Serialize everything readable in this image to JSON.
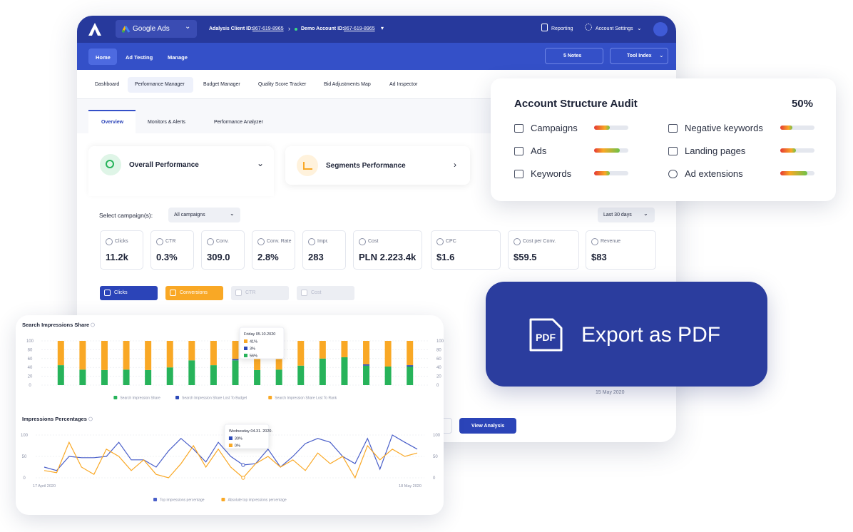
{
  "header": {
    "brand": "Google Ads",
    "client_label": "Adalysis Client ID:",
    "client_id": "867-619-8965",
    "account_label": "Demo Account ID:",
    "account_id": "867-619-8965",
    "reporting": "Reporting",
    "settings": "Account Settings"
  },
  "nav": {
    "items": [
      "Home",
      "Ad Testing",
      "Manage"
    ],
    "notes": "5 Notes",
    "tool_index": "Tool Index"
  },
  "subnav": [
    "Dashboard",
    "Performance Manager",
    "Budget Manager",
    "Quality Score Tracker",
    "Bid Adjustments Map",
    "Ad Inspector"
  ],
  "tabs": [
    "Overview",
    "Monitors & Alerts",
    "Performance Analyzer"
  ],
  "cards": [
    "Overall Performance",
    "Segments Performance"
  ],
  "filters": {
    "label": "Select campaign(s):",
    "campaigns": "All campaigns",
    "period": "Last 30 days"
  },
  "metrics": [
    {
      "label": "Clicks",
      "value": "11.2k"
    },
    {
      "label": "CTR",
      "value": "0.3%"
    },
    {
      "label": "Conv.",
      "value": "309.0"
    },
    {
      "label": "Conv. Rate",
      "value": "2.8%"
    },
    {
      "label": "Impr.",
      "value": "283"
    },
    {
      "label": "Cost",
      "value": "PLN 2.223.4k"
    },
    {
      "label": "CPC",
      "value": "$1.6"
    },
    {
      "label": "Cost per Conv.",
      "value": "$59.5"
    },
    {
      "label": "Revenue",
      "value": "$83"
    }
  ],
  "toggles": [
    "Clicks",
    "Conversions",
    "CTR",
    "Cost"
  ],
  "chart_date": "15 May 2020",
  "button": "View Analysis",
  "audit": {
    "title": "Account Structure Audit",
    "score": "50%",
    "items": [
      {
        "label": "Campaigns",
        "progress": 45
      },
      {
        "label": "Ads",
        "progress": 75
      },
      {
        "label": "Keywords",
        "progress": 45
      },
      {
        "label": "Negative keywords",
        "progress": 35
      },
      {
        "label": "Landing pages",
        "progress": 45
      },
      {
        "label": "Ad extensions",
        "progress": 80
      }
    ]
  },
  "export": {
    "icon": "PDF",
    "label": "Export as PDF"
  },
  "chart_data": [
    {
      "type": "bar",
      "stacked": true,
      "title": "Search Impressions Share",
      "categories": [
        null,
        null,
        null,
        null,
        null,
        null,
        null,
        null,
        null,
        null,
        null,
        null,
        null,
        null,
        null,
        null,
        null
      ],
      "series": [
        {
          "name": "Search Impression Share",
          "color": "#27b35a",
          "values": [
            45,
            35,
            34,
            35,
            34,
            40,
            56,
            45,
            56,
            34,
            35,
            44,
            60,
            63,
            44,
            42,
            42
          ]
        },
        {
          "name": "Search Impression Share Lost To Budget",
          "color": "#2d4ab8",
          "values": [
            0,
            0,
            0,
            0,
            0,
            0,
            0,
            0,
            3,
            0,
            0,
            0,
            0,
            0,
            3,
            0,
            3
          ]
        },
        {
          "name": "Search Impression Share Lost To Rank",
          "color": "#f9a825",
          "values": [
            55,
            65,
            66,
            65,
            66,
            60,
            44,
            55,
            41,
            66,
            65,
            56,
            40,
            37,
            53,
            58,
            55
          ]
        }
      ],
      "ylim": [
        0,
        100
      ],
      "yticks": [
        0,
        20,
        40,
        60,
        80,
        100
      ],
      "y2lim": [
        0,
        100
      ],
      "y2ticks": [
        0,
        20,
        40,
        60,
        80,
        100
      ],
      "grid": true,
      "legend": "bottom",
      "tooltip": {
        "index": 8,
        "title": "Friday 05.10.2020",
        "items": [
          {
            "color": "#f9a825",
            "label": "41%"
          },
          {
            "color": "#2d4ab8",
            "label": "3%"
          },
          {
            "color": "#27b35a",
            "label": "56%"
          }
        ]
      }
    },
    {
      "type": "line",
      "title": "Impressions Percentages",
      "categories": [
        "17 April 2020",
        null,
        null,
        null,
        null,
        null,
        null,
        null,
        null,
        null,
        null,
        null,
        null,
        null,
        null,
        null,
        null,
        null,
        null,
        null,
        null,
        null,
        null,
        null,
        null,
        null,
        null,
        null,
        null,
        null,
        "18 May 2020"
      ],
      "series": [
        {
          "name": "Top impressions percentage",
          "color": "#4a5fc9",
          "values": [
            25,
            17,
            50,
            47,
            47,
            50,
            83,
            42,
            42,
            25,
            63,
            92,
            67,
            37,
            83,
            50,
            30,
            33,
            67,
            25,
            50,
            80,
            92,
            83,
            50,
            33,
            92,
            20,
            100,
            83,
            67
          ]
        },
        {
          "name": "Absolute top impressions percentage",
          "color": "#f9a825",
          "values": [
            17,
            12,
            83,
            25,
            8,
            67,
            50,
            17,
            42,
            8,
            0,
            33,
            75,
            25,
            67,
            25,
            0,
            33,
            50,
            25,
            42,
            17,
            58,
            33,
            50,
            0,
            75,
            42,
            67,
            50,
            58
          ]
        }
      ],
      "ylim": [
        0,
        100
      ],
      "yticks": [
        0,
        50,
        100
      ],
      "y2lim": [
        0,
        100
      ],
      "y2ticks": [
        0,
        50,
        100
      ],
      "grid": true,
      "legend": "bottom",
      "tooltip": {
        "index": 16,
        "title": "Wednesday 04.31. 2020.",
        "items": [
          {
            "color": "#2d4ab8",
            "label": "30%"
          },
          {
            "color": "#f9a825",
            "label": "0%"
          }
        ]
      }
    }
  ]
}
